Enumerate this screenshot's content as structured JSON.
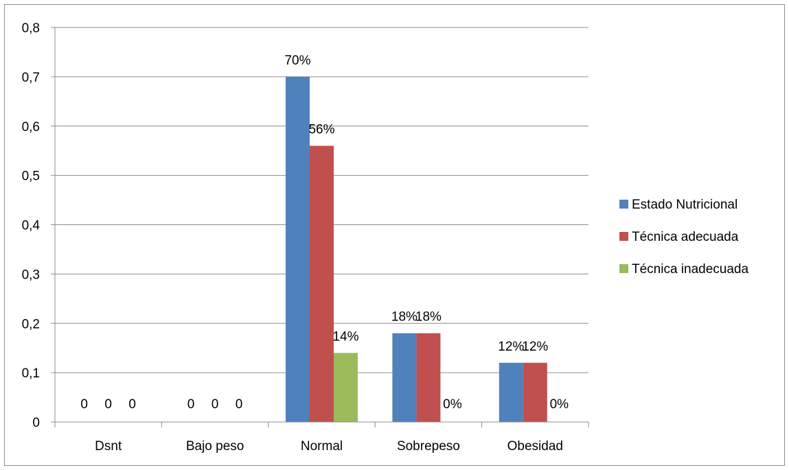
{
  "chart_data": {
    "type": "bar",
    "categories": [
      "Dsnt",
      "Bajo peso",
      "Normal",
      "Sobrepeso",
      "Obesidad"
    ],
    "series": [
      {
        "name": "Estado Nutricional",
        "color": "#4f81bd",
        "values": [
          0,
          0,
          0.7,
          0.18,
          0.12
        ],
        "labels": [
          "0",
          "0",
          "70%",
          "18%",
          "12%"
        ]
      },
      {
        "name": "Técnica adecuada",
        "color": "#c0504d",
        "values": [
          0,
          0,
          0.56,
          0.18,
          0.12
        ],
        "labels": [
          "0",
          "0",
          "56%",
          "18%",
          "12%"
        ]
      },
      {
        "name": "Técnica inadecuada",
        "color": "#9bbb59",
        "values": [
          0,
          0,
          0.14,
          0,
          0
        ],
        "labels": [
          "0",
          "0",
          "14%",
          "0%",
          "0%"
        ]
      }
    ],
    "y_ticks": [
      "0",
      "0,1",
      "0,2",
      "0,3",
      "0,4",
      "0,5",
      "0,6",
      "0,7",
      "0,8"
    ],
    "ylim": [
      0,
      0.8
    ],
    "grid": true,
    "legend": "right",
    "title": "",
    "xlabel": "",
    "ylabel": ""
  }
}
